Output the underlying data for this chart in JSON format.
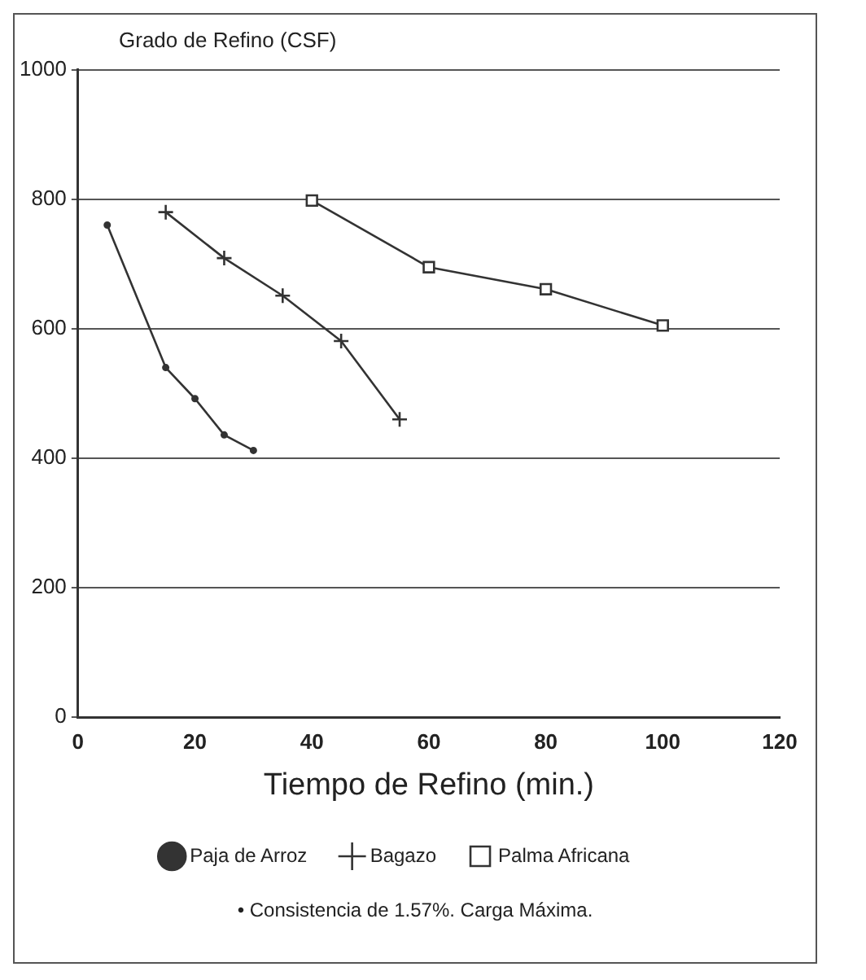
{
  "chart_data": {
    "type": "line",
    "ylabel": "Grado de Refino (CSF)",
    "xlabel": "Tiempo de Refino (min.)",
    "xlim": [
      0,
      120
    ],
    "xticks": [
      0,
      20,
      40,
      60,
      80,
      100,
      120
    ],
    "ylim": [
      0,
      1000
    ],
    "yticks": [
      0,
      200,
      400,
      600,
      800,
      1000
    ],
    "grid": "y",
    "legend": "bottom",
    "line_style": "solid",
    "series": [
      {
        "name": "Paja de Arroz",
        "color": "#333333",
        "marker": "circle",
        "x": [
          5,
          15,
          20,
          25,
          30
        ],
        "values": [
          760,
          540,
          492,
          436,
          412
        ]
      },
      {
        "name": "Bagazo",
        "color": "#333333",
        "marker": "cross",
        "x": [
          15,
          25,
          35,
          45,
          55
        ],
        "values": [
          780,
          709,
          651,
          581,
          460
        ]
      },
      {
        "name": "Palma Africana",
        "color": "#333333",
        "marker": "square",
        "x": [
          40,
          60,
          80,
          100
        ],
        "values": [
          798,
          695,
          661,
          605
        ]
      }
    ],
    "annotations": [
      "• Consistencia de 1.57%.  Carga Máxima."
    ]
  }
}
